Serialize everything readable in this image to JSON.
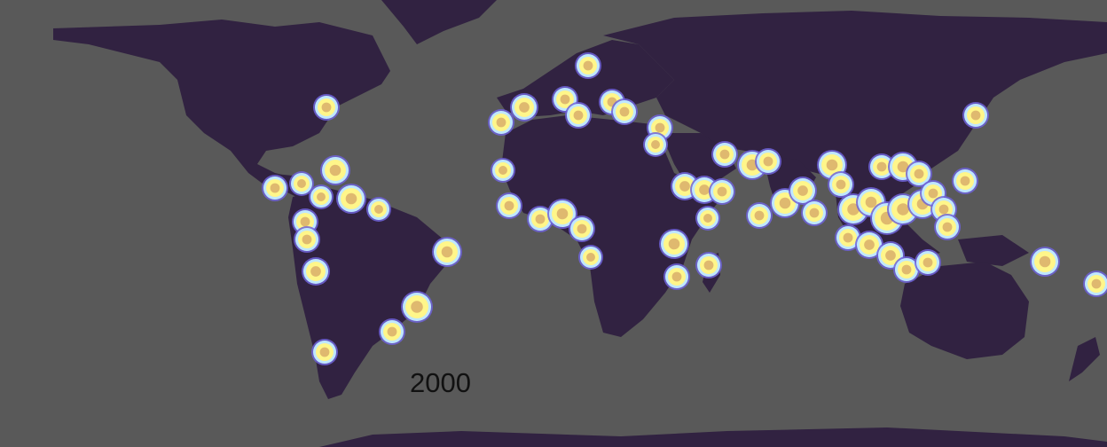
{
  "map": {
    "year_label": "2000",
    "colors": {
      "ocean": "#595959",
      "land": "#312241",
      "hotspot_core": "#fff68a",
      "hotspot_ring": "#bfe7ff",
      "hotspot_edge": "#6f63d8",
      "hotspot_inner": "#d9ae6a"
    },
    "legend": null
  }
}
